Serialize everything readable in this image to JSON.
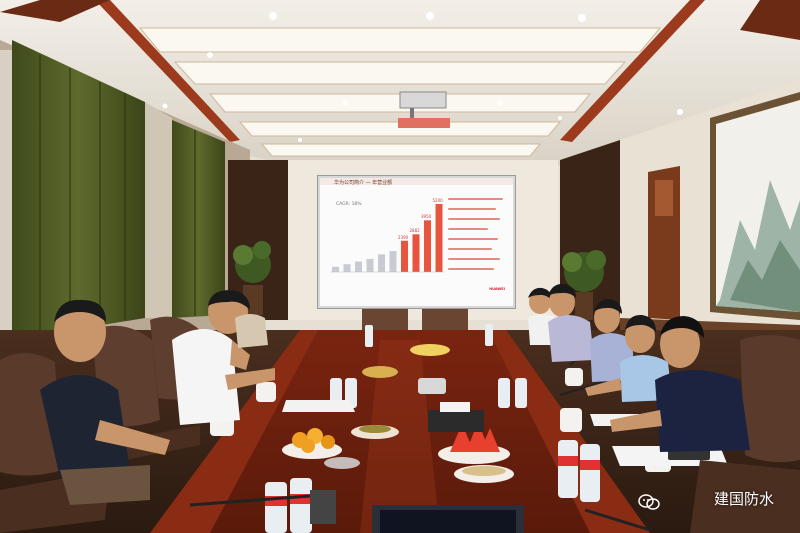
{
  "photo": {
    "description_colors": {
      "wall": "#efe9df",
      "ceiling": "#e8e2d8",
      "table": "#8a2b14",
      "curtain": "#4f5a24",
      "chair": "#5a3a2a"
    }
  },
  "slide": {
    "title": "华为公司简介 — 年营业额",
    "cagr": "CAGR: 18%",
    "bars": [
      {
        "label": "",
        "value": 400
      },
      {
        "label": "",
        "value": 600
      },
      {
        "label": "",
        "value": 800
      },
      {
        "label": "",
        "value": 1000
      },
      {
        "label": "",
        "value": 1350
      },
      {
        "label": "",
        "value": 1600
      },
      {
        "label": "2390",
        "value": 2390
      },
      {
        "label": "2882",
        "value": 2882
      },
      {
        "label": "3950",
        "value": 3950
      },
      {
        "label": "5200",
        "value": 5200
      }
    ],
    "logo": "HUAWEI"
  },
  "watermark": {
    "text": "建国防水"
  }
}
